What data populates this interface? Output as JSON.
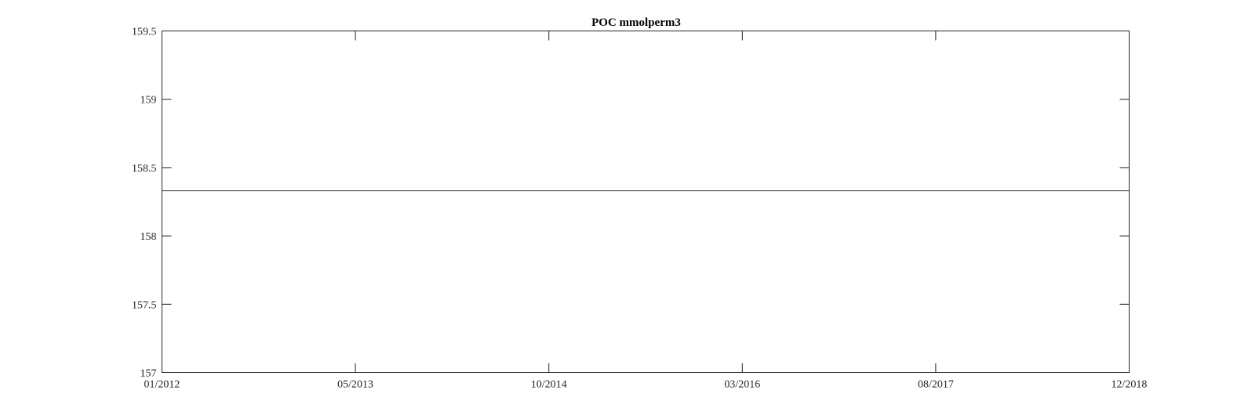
{
  "chart_data": {
    "type": "line",
    "title": "POC mmolperm3",
    "xlabel": "",
    "ylabel": "",
    "x_tick_labels": [
      "01/2012",
      "05/2013",
      "10/2014",
      "03/2016",
      "08/2017",
      "12/2018"
    ],
    "xlim": [
      "01/2012",
      "12/2018"
    ],
    "y_tick_labels": [
      "157",
      "157.5",
      "158",
      "158.5",
      "159",
      "159.5"
    ],
    "y_ticks": [
      157,
      157.5,
      158,
      158.5,
      159,
      159.5
    ],
    "ylim": [
      157,
      159.5
    ],
    "grid": false,
    "series": [
      {
        "x": [
          "01/2012",
          "12/2018"
        ],
        "y": [
          158.33,
          158.33
        ]
      }
    ],
    "colors": {
      "line": "#262626",
      "axes": "#262626"
    }
  }
}
